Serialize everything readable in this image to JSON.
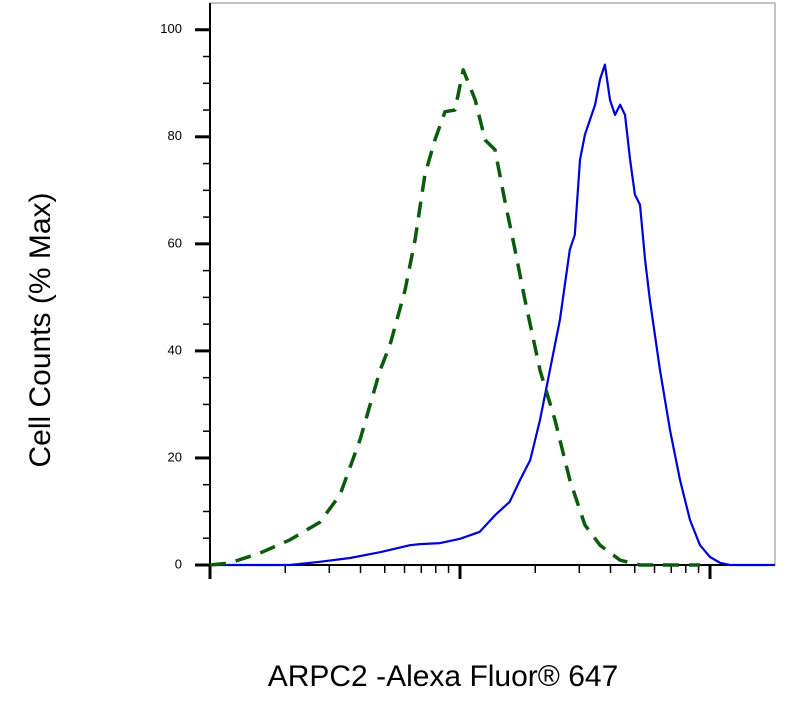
{
  "chart_data": {
    "type": "line",
    "xlabel": "ARPC2 -Alexa Fluor® 647",
    "ylabel": "Cell Counts (% Max)",
    "xlog": true,
    "xlim": [
      1,
      182
    ],
    "xticks": [
      1,
      10,
      100
    ],
    "xminorticks": [
      2,
      3,
      4,
      5,
      6,
      7,
      8,
      9,
      20,
      30,
      40,
      50,
      60,
      70,
      80,
      90
    ],
    "ylim": [
      0,
      105
    ],
    "yticks": [
      0,
      20,
      40,
      60,
      80,
      100
    ],
    "yminorticks": [
      5,
      10,
      15,
      25,
      30,
      35,
      45,
      50,
      55,
      65,
      70,
      75,
      85,
      90,
      95
    ],
    "series": [
      {
        "color": "#0000dd",
        "dashed": false,
        "x": [
          1,
          1.45,
          2.09,
          2.75,
          3.63,
          4.79,
          6.31,
          6.92,
          8.32,
          10.0,
          12.0,
          13.8,
          15.8,
          17.4,
          19.1,
          20.9,
          22.9,
          25.1,
          27.5,
          28.8,
          30.2,
          31.6,
          34.7,
          36.3,
          38.0,
          39.8,
          41.7,
          43.7,
          45.7,
          47.9,
          50.1,
          52.5,
          55.0,
          57.5,
          63.1,
          69.2,
          75.9,
          83.2,
          91.2,
          100,
          110,
          120,
          182
        ],
        "values": [
          0,
          0,
          0,
          0.6,
          1.3,
          2.4,
          3.7,
          3.9,
          4.1,
          4.9,
          6.2,
          9.3,
          11.8,
          15.9,
          19.6,
          27.1,
          36.4,
          45.8,
          58.9,
          61.7,
          75.7,
          80.4,
          86.0,
          90.7,
          93.5,
          86.9,
          84.1,
          86.0,
          84.1,
          75.7,
          69.2,
          67.3,
          57.0,
          49.5,
          36.4,
          25.2,
          15.9,
          8.4,
          3.7,
          1.5,
          0.4,
          0,
          0
        ]
      },
      {
        "color": "#0a5c0a",
        "dashed": true,
        "x": [
          1,
          1.2,
          1.58,
          2.09,
          2.75,
          3.31,
          3.98,
          4.79,
          5.25,
          6.03,
          6.61,
          7.24,
          7.94,
          8.71,
          9.55,
          10.3,
          11.5,
          12.6,
          13.8,
          15.1,
          16.6,
          18.2,
          20.9,
          24.0,
          27.5,
          31.6,
          36.3,
          43.7,
          52.5,
          63.1,
          91.2
        ],
        "values": [
          0,
          0.4,
          2.2,
          4.7,
          8.0,
          13.1,
          23.4,
          36.4,
          41.1,
          51.4,
          60.7,
          72.9,
          79.4,
          84.7,
          85.0,
          92.5,
          86.9,
          79.4,
          77.6,
          68.2,
          58.9,
          49.5,
          36.4,
          27.1,
          15.9,
          7.5,
          3.7,
          0.9,
          0,
          0,
          0
        ]
      }
    ]
  }
}
